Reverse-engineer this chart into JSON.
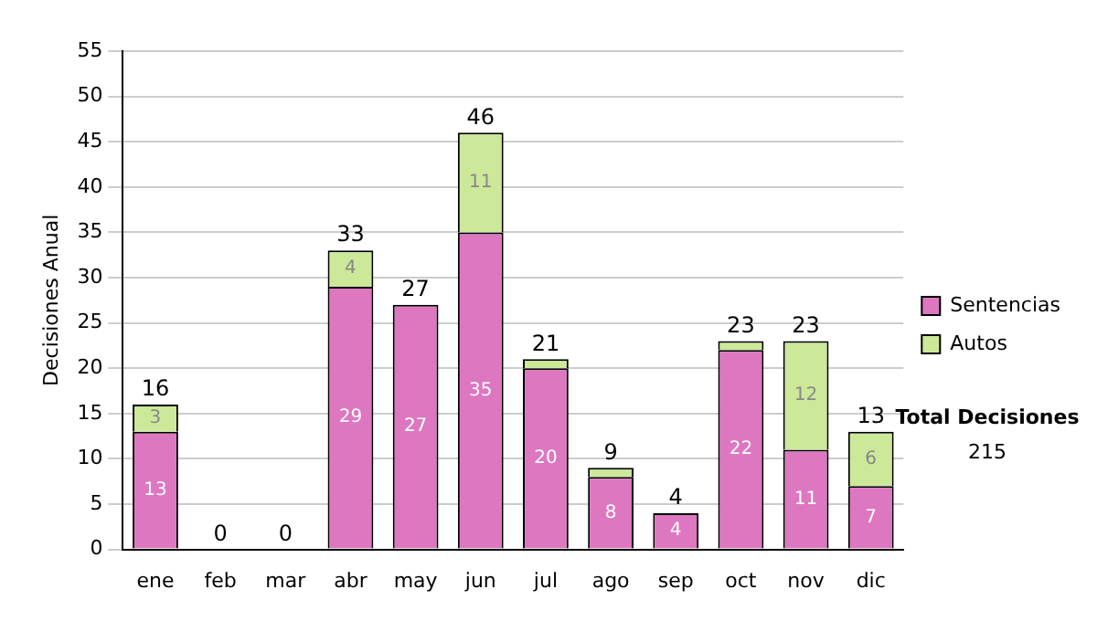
{
  "chart_data": {
    "type": "bar",
    "stacked": true,
    "ylabel": "Decisiones Anual",
    "categories": [
      "ene",
      "feb",
      "mar",
      "abr",
      "may",
      "jun",
      "jul",
      "ago",
      "sep",
      "oct",
      "nov",
      "dic"
    ],
    "series": [
      {
        "name": "Sentencias",
        "color": "#dd77c0",
        "values": [
          13,
          0,
          0,
          29,
          27,
          35,
          20,
          8,
          4,
          22,
          11,
          7
        ],
        "value_labels": [
          "13",
          null,
          null,
          "29",
          "27",
          "35",
          "20",
          "8",
          "4",
          "22",
          "11",
          "7"
        ]
      },
      {
        "name": "Autos",
        "color": "#cce899",
        "values": [
          3,
          0,
          0,
          4,
          0,
          11,
          1,
          1,
          0,
          1,
          12,
          6
        ],
        "value_labels": [
          "3",
          null,
          null,
          "4",
          null,
          "11",
          null,
          null,
          null,
          null,
          "12",
          "6"
        ]
      }
    ],
    "totals": [
      "16",
      "0",
      "0",
      "33",
      "27",
      "46",
      "21",
      "9",
      "4",
      "23",
      "23",
      "13"
    ],
    "ylim": [
      0,
      55
    ],
    "yticks": [
      0,
      5,
      10,
      15,
      20,
      25,
      30,
      35,
      40,
      45,
      50,
      55
    ],
    "grid": "y",
    "legend": "right",
    "annotations": [
      "Total Decisiones",
      "215"
    ]
  }
}
